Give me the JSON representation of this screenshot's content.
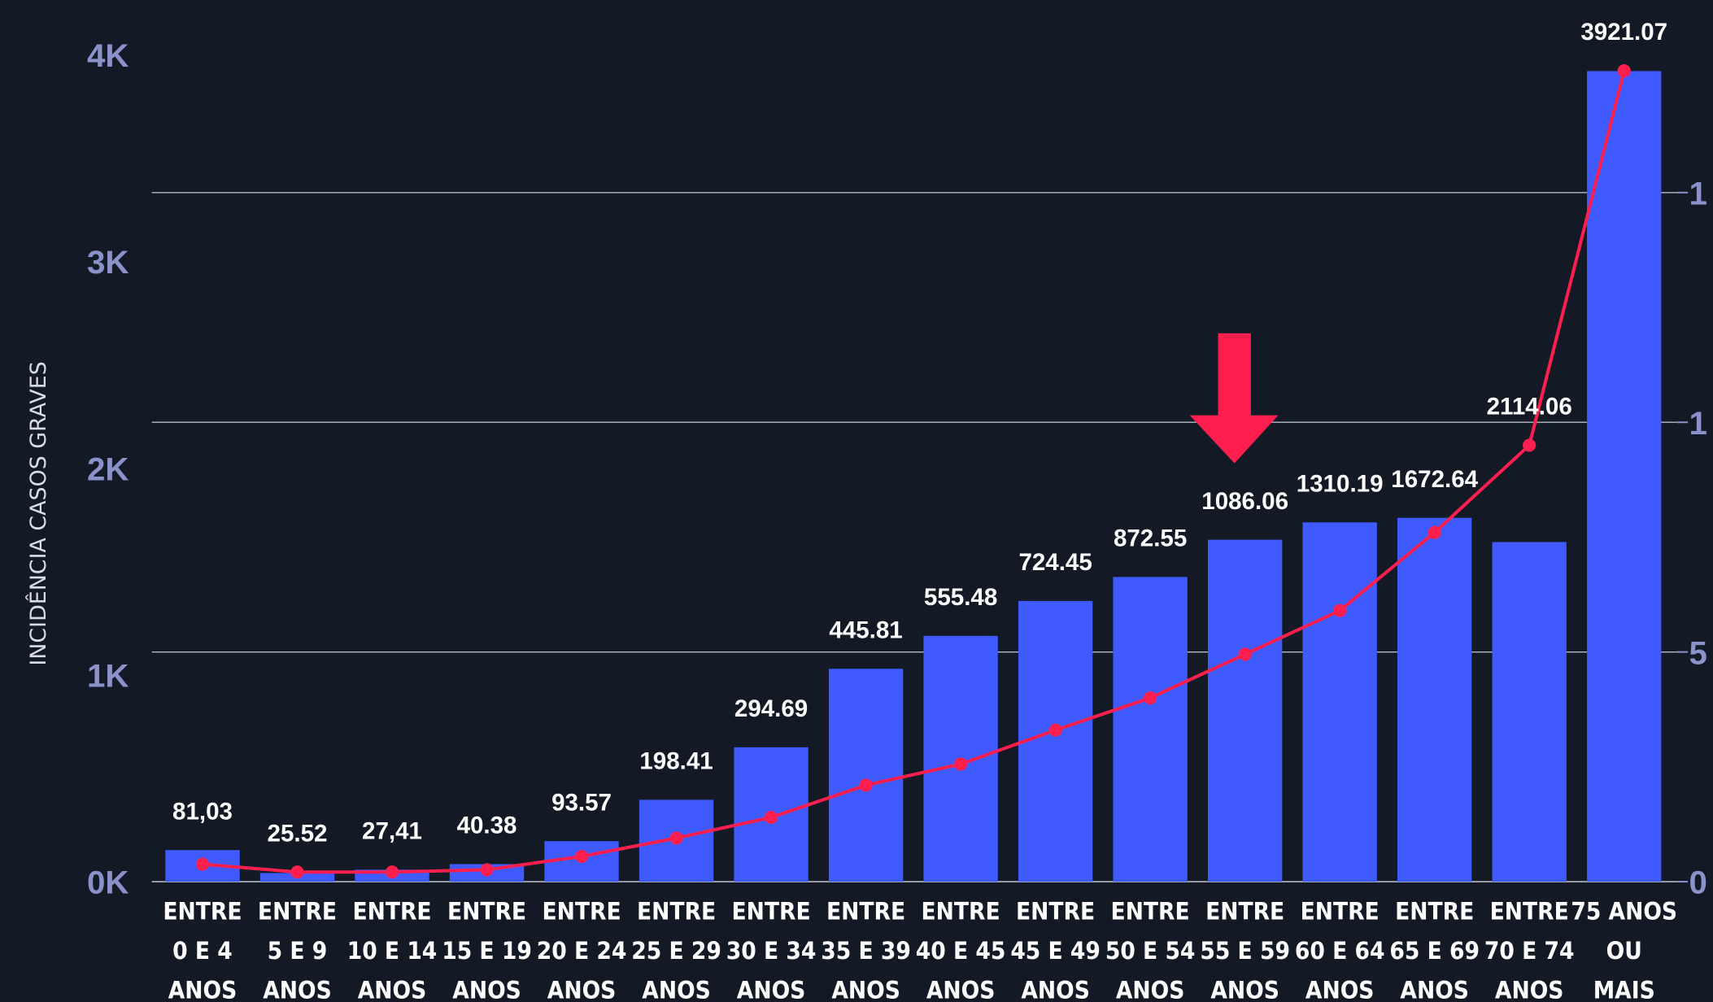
{
  "chart_data": {
    "type": "bar",
    "y_label": "INCIDÊNCIA CASOS GRAVES",
    "categories": [
      "ENTRE\n0 E 4\nANOS",
      "ENTRE\n5 E 9\nANOS",
      "ENTRE\n10 E 14\nANOS",
      "ENTRE\n15 E 19\nANOS",
      "ENTRE\n20 E 24\nANOS",
      "ENTRE\n25 E 29\nANOS",
      "ENTRE\n30 E 34\nANOS",
      "ENTRE\n35 E 39\nANOS",
      "ENTRE\n40 E 45\nANOS",
      "ENTRE\n45 E 49\nANOS",
      "ENTRE\n50 E 54\nANOS",
      "ENTRE\n55 E 59\nANOS",
      "ENTRE\n60 E 64\nANOS",
      "ENTRE\n65 E 69\nANOS",
      "ENTRE\n70 E 74\nANOS",
      "75 ANOS\nOU\nMAIS"
    ],
    "series": [
      {
        "type": "bar",
        "color": "#3f5afe",
        "values": [
          153,
          42,
          58,
          85,
          196,
          396,
          650,
          1030,
          1189,
          1358,
          1474,
          1654,
          1738,
          1760,
          1643,
          3921
        ]
      },
      {
        "type": "line",
        "axis": "y2",
        "color": "#ff1f4f",
        "values": [
          0.38,
          0.21,
          0.21,
          0.26,
          0.55,
          0.95,
          1.4,
          2.1,
          2.56,
          3.3,
          4.0,
          4.95,
          5.9,
          7.6,
          9.5,
          17.65
        ]
      }
    ],
    "annotations": [
      "81,03",
      "25.52",
      "27,41",
      "40.38",
      "93.57",
      "198.41",
      "294.69",
      "445.81",
      "555.48",
      "724.45",
      "872.55",
      "1086.06",
      "1310.19",
      "1672.64",
      "2114.06",
      "3921.07"
    ],
    "ylim": [
      0,
      4000
    ],
    "yticks": [
      {
        "value": 0,
        "label": "0K"
      },
      {
        "value": 1000,
        "label": "1K"
      },
      {
        "value": 2000,
        "label": "2K"
      },
      {
        "value": 3000,
        "label": "3K"
      },
      {
        "value": 4000,
        "label": "4K"
      }
    ],
    "y2lim": [
      0,
      18
    ],
    "y2ticks": [
      0,
      5,
      {
        "value": 10,
        "label": "1"
      },
      {
        "value": 15,
        "label": "1"
      }
    ],
    "grid": "y2"
  }
}
